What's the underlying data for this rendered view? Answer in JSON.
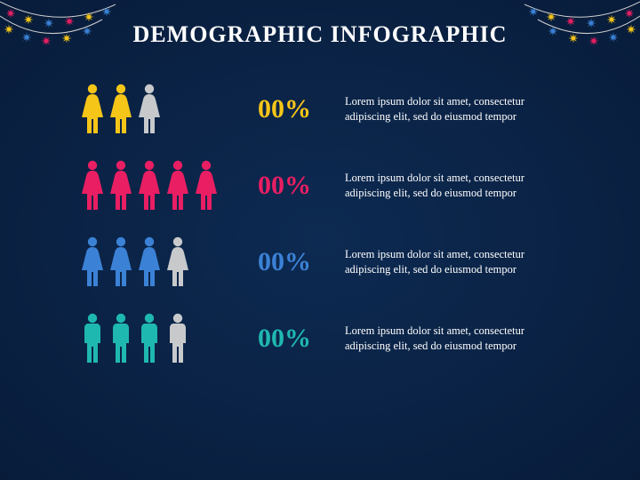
{
  "title": "DEMOGRAPHIC INFOGRAPHIC",
  "background_gradient": [
    "#0d2a52",
    "#081c3a"
  ],
  "bunting_colors": [
    "#e91e63",
    "#f5c518",
    "#3b82d6"
  ],
  "inactive_icon_color": "#c7c9cb",
  "text_color": "#ffffff",
  "rows": [
    {
      "gender": "female",
      "color": "#f5c518",
      "icon_count": 3,
      "active_count": 2,
      "pct": "00%",
      "desc": "Lorem ipsum dolor sit amet, consectetur adipiscing elit, sed do eiusmod tempor"
    },
    {
      "gender": "female",
      "color": "#e91e63",
      "icon_count": 5,
      "active_count": 5,
      "pct": "00%",
      "desc": "Lorem ipsum dolor sit amet, consectetur adipiscing elit, sed do eiusmod tempor"
    },
    {
      "gender": "female",
      "color": "#3b82d6",
      "icon_count": 4,
      "active_count": 3,
      "pct": "00%",
      "desc": "Lorem ipsum dolor sit amet, consectetur adipiscing elit, sed do eiusmod tempor"
    },
    {
      "gender": "male",
      "color": "#1fb8b0",
      "icon_count": 4,
      "active_count": 3,
      "pct": "00%",
      "desc": "Lorem ipsum dolor sit amet, consectetur adipiscing elit, sed do eiusmod tempor"
    }
  ]
}
